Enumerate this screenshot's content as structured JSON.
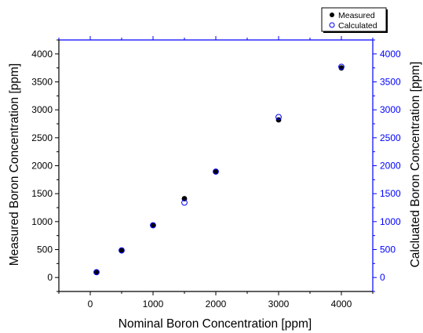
{
  "chart_data": {
    "type": "scatter",
    "title": "",
    "xlabel": "Nominal Boron Concentration [ppm]",
    "ylabel_left": "Measured Boron Concentration [ppm]",
    "ylabel_right": "Calcluated Boron Concentration [ppm]",
    "xlim": [
      -500,
      4500
    ],
    "ylim": [
      -250,
      4250
    ],
    "x_ticks": [
      0,
      1000,
      2000,
      3000,
      4000
    ],
    "y_ticks": [
      0,
      500,
      1000,
      1500,
      2000,
      2500,
      3000,
      3500,
      4000
    ],
    "x_tick_labels": [
      "0",
      "1000",
      "2000",
      "3000",
      "4000"
    ],
    "y_tick_labels": [
      "0",
      "500",
      "1000",
      "1500",
      "2000",
      "2500",
      "3000",
      "3500",
      "4000"
    ],
    "grid": false,
    "legend_position": "top-right",
    "colors": {
      "axis_left": "#000000",
      "axis_right": "#0000ff",
      "axis_top": "#0000ff",
      "measured": "#000000",
      "calculated": "#0000ff"
    },
    "series": [
      {
        "name": "Measured",
        "marker": "filled-circle",
        "x": [
          100,
          500,
          1000,
          1500,
          2000,
          3000,
          4000
        ],
        "y": [
          90,
          480,
          930,
          1410,
          1890,
          2820,
          3750
        ]
      },
      {
        "name": "Calculated",
        "marker": "open-circle",
        "x": [
          100,
          500,
          1000,
          1500,
          2000,
          3000,
          4000
        ],
        "y": [
          95,
          485,
          935,
          1340,
          1895,
          2870,
          3770
        ]
      }
    ]
  }
}
